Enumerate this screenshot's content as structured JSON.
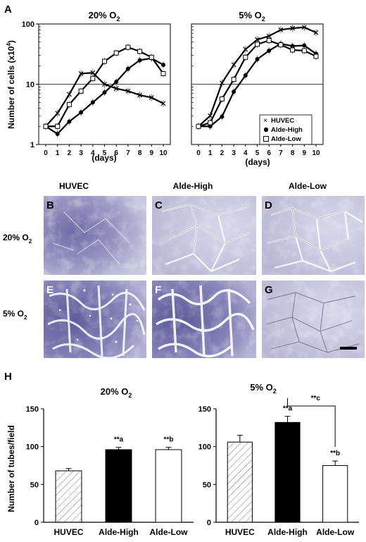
{
  "panel_labels": {
    "A": "A",
    "H": "H"
  },
  "micro": {
    "cols": [
      "HUVEC",
      "Alde-High",
      "Alde-Low"
    ],
    "row1_label": "20% O",
    "row2_label": "5% O",
    "o2_sub": "2",
    "tiles": [
      "B",
      "C",
      "D",
      "E",
      "F",
      "G"
    ]
  },
  "chart_data": [
    {
      "type": "line",
      "title": "20% O",
      "title_sub": "2",
      "ylabel": "Number of cells  (x10",
      "ylabel_sup": "4",
      "ylabel_end": ")",
      "xlabel": "(days)",
      "yscale": "log",
      "ylim": [
        1,
        100
      ],
      "ytick_labels": [
        "1",
        "10",
        "100"
      ],
      "yticks": [
        1,
        10,
        100
      ],
      "x": [
        0,
        1,
        2,
        3,
        4,
        5,
        6,
        7,
        8,
        9,
        10
      ],
      "series": [
        {
          "name": "HUVEC",
          "marker": "x",
          "values": [
            2,
            3.3,
            6.8,
            15,
            15.5,
            10,
            8.5,
            7.7,
            6.6,
            6.0,
            4.8
          ]
        },
        {
          "name": "Alde-High",
          "marker": "filled-circle",
          "values": [
            2,
            1.5,
            2.4,
            3.4,
            5.0,
            7.3,
            11,
            18,
            25,
            27,
            21
          ]
        },
        {
          "name": "Alde-Low",
          "marker": "open-square",
          "values": [
            2,
            2.0,
            4.6,
            7.7,
            12.5,
            24,
            33,
            41,
            35,
            28,
            15
          ]
        }
      ]
    },
    {
      "type": "line",
      "title": "5% O",
      "title_sub": "2",
      "xlabel": "(days)",
      "yscale": "log",
      "ylim": [
        1,
        100
      ],
      "x": [
        0,
        1,
        2,
        3,
        4,
        5,
        6,
        7,
        8,
        9,
        10
      ],
      "legend": [
        "HUVEC",
        "Alde-High",
        "Alde-Low"
      ],
      "series": [
        {
          "name": "HUVEC",
          "marker": "x",
          "values": [
            2,
            3.0,
            10.5,
            21,
            38,
            55,
            63,
            80,
            85,
            88,
            72
          ]
        },
        {
          "name": "Alde-High",
          "marker": "filled-circle",
          "values": [
            2,
            2.0,
            2.9,
            7.5,
            14,
            26,
            36,
            47,
            43,
            44,
            32
          ]
        },
        {
          "name": "Alde-Low",
          "marker": "open-square",
          "values": [
            2,
            2.3,
            5.7,
            12,
            28,
            46,
            53,
            45,
            37,
            36,
            29
          ]
        }
      ]
    },
    {
      "type": "bar",
      "title": "20% O",
      "title_sub": "2",
      "ylabel": "Number of tubes/field",
      "categories": [
        "HUVEC",
        "Alde-High",
        "Alde-Low"
      ],
      "values": [
        68,
        96,
        96
      ],
      "errors": [
        3,
        3,
        3
      ],
      "annotations": [
        "",
        "**a",
        "**b"
      ],
      "ylim": [
        0,
        150
      ],
      "ytick_labels": [
        "0",
        "50",
        "100",
        "150"
      ],
      "yticks": [
        0,
        50,
        100,
        150
      ]
    },
    {
      "type": "bar",
      "title": "5% O",
      "title_sub": "2",
      "categories": [
        "HUVEC",
        "Alde-High",
        "Alde-Low"
      ],
      "values": [
        106,
        132,
        75
      ],
      "errors": [
        9,
        8,
        6
      ],
      "annotations": [
        "",
        "**a",
        "**b"
      ],
      "bracket_label": "**c",
      "ylim": [
        0,
        150
      ],
      "ytick_labels": [
        "0",
        "50",
        "100",
        "150"
      ],
      "yticks": [
        0,
        50,
        100,
        150
      ]
    }
  ]
}
